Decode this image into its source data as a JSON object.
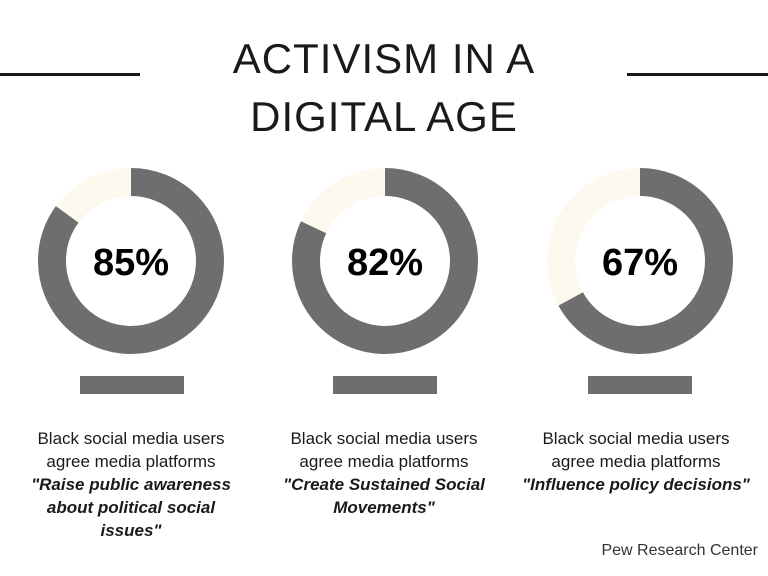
{
  "title": [
    "ACTIVISM IN A",
    "DIGITAL AGE"
  ],
  "colors": {
    "filled": "#6e6e6e",
    "remaining": "#fdf9ef",
    "text": "#1a1a1a"
  },
  "chart_data": {
    "type": "pie",
    "variant": "donut",
    "items": [
      {
        "value": 85,
        "label": "85%",
        "caption_lines": [
          "Black social media users",
          "agree media platforms"
        ],
        "quote": "\"Raise public awareness about political social issues\""
      },
      {
        "value": 82,
        "label": "82%",
        "caption_lines": [
          "Black social media users",
          "agree media platforms"
        ],
        "quote": "\"Create Sustained Social Movements\""
      },
      {
        "value": 67,
        "label": "67%",
        "caption_lines": [
          "Black social media users",
          "agree media platforms"
        ],
        "quote": "\"Influence policy decisions\""
      }
    ]
  },
  "source": "Pew Research Center"
}
